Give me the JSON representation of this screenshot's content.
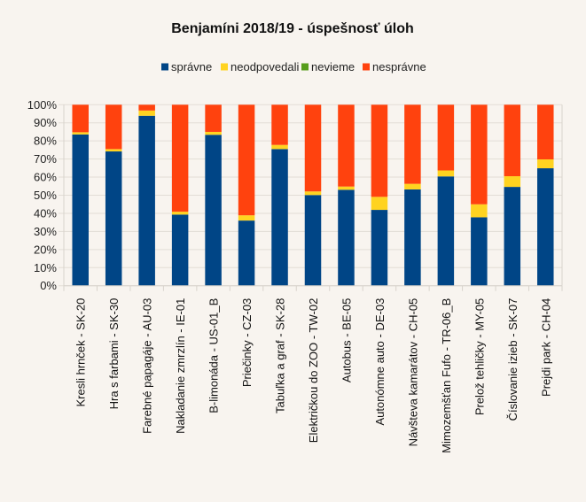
{
  "chart_data": {
    "type": "bar",
    "stacked": true,
    "normalized": true,
    "title": "Benjamíni 2018/19 - úspešnosť úloh",
    "xlabel": "",
    "ylabel": "",
    "ylim": [
      0,
      100
    ],
    "y_ticks": [
      "0%",
      "10%",
      "20%",
      "30%",
      "40%",
      "50%",
      "60%",
      "70%",
      "80%",
      "90%",
      "100%"
    ],
    "grid": true,
    "legend_position": "top",
    "categories": [
      "Kresli hrnček  - SK-20",
      "Hra s farbami  - SK-30",
      "Farebné papagáje  - AU-03",
      "Nakladanie zmrzlín  - IE-01",
      "B-limonáda  - US-01_B",
      "Priečinky  - CZ-03",
      "Tabuľka a graf  - SK-28",
      "Električkou do ZOO  - TW-02",
      "Autobus  - BE-05",
      "Autonómne auto  - DE-03",
      "Návšteva kamarátov  - CH-05",
      "Mimozemšťan Fufo  - TR-06_B",
      "Prelož tehličky  - MY-05",
      "Číslovanie izieb  - SK-07",
      "Prejdi park  - CH-04"
    ],
    "series": [
      {
        "name": "správne",
        "color": "#004586",
        "values": [
          83.6,
          74.2,
          93.9,
          39.3,
          83.4,
          36.0,
          75.5,
          50.1,
          53.0,
          41.9,
          53.2,
          60.4,
          37.8,
          54.6,
          64.9
        ]
      },
      {
        "name": "neodpovedali",
        "color": "#ffd320",
        "values": [
          1.2,
          1.3,
          2.9,
          1.6,
          1.6,
          2.9,
          2.3,
          2.0,
          1.8,
          7.2,
          3.1,
          3.3,
          7.2,
          5.9,
          4.9
        ]
      },
      {
        "name": "nevieme",
        "color": "#579d1c",
        "values": [
          0,
          0,
          0,
          0,
          0,
          0,
          0,
          0,
          0,
          0,
          0,
          0,
          0,
          0,
          0
        ]
      },
      {
        "name": "nesprávne",
        "color": "#ff420e",
        "values": [
          15.2,
          24.5,
          3.2,
          59.1,
          15.0,
          61.1,
          22.2,
          47.9,
          45.2,
          50.9,
          43.7,
          36.3,
          55.0,
          39.5,
          30.2
        ]
      }
    ]
  }
}
